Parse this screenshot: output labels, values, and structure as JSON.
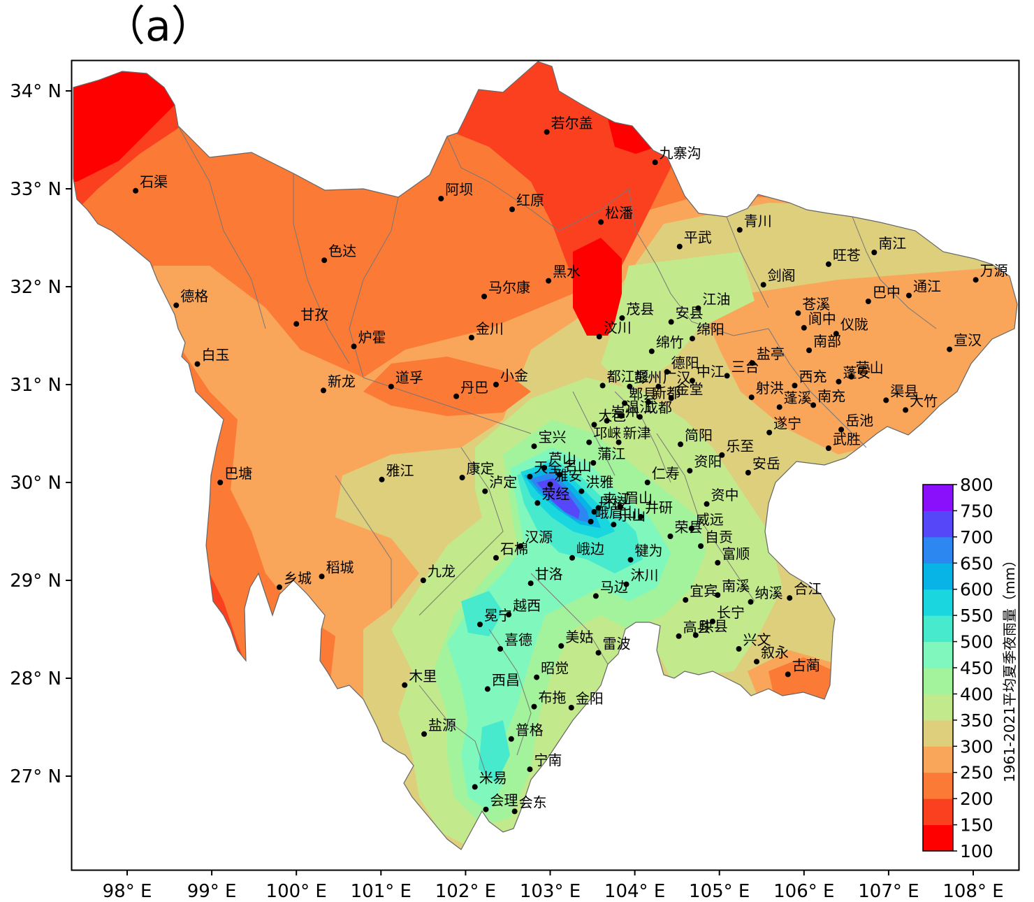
{
  "panel_label": "（a）",
  "lon_ticks": [
    "98° E",
    "99° E",
    "100° E",
    "101° E",
    "102° E",
    "103° E",
    "104° E",
    "105° E",
    "106° E",
    "107° E",
    "108° E"
  ],
  "lat_ticks": [
    "34° N",
    "33° N",
    "32° N",
    "31° N",
    "30° N",
    "29° N",
    "28° N",
    "27° N"
  ],
  "colorbar": {
    "title": "1961-2021平均夏季夜雨量（mm）",
    "levels": [
      "100",
      "150",
      "200",
      "250",
      "300",
      "350",
      "400",
      "450",
      "500",
      "550",
      "600",
      "650",
      "700",
      "750",
      "800"
    ],
    "colors": [
      "#ff0000",
      "#fb4020",
      "#fa7a36",
      "#f9a55a",
      "#ddcf7c",
      "#c2ea8d",
      "#a2f39c",
      "#7ff7bd",
      "#48eace",
      "#1ad6df",
      "#08b3e6",
      "#2c87f0",
      "#5648f8",
      "#8a10fb"
    ]
  },
  "cities": [
    {
      "name": "若尔盖",
      "lon": 102.96,
      "lat": 33.58
    },
    {
      "name": "九寨沟",
      "lon": 104.24,
      "lat": 33.27
    },
    {
      "name": "石渠",
      "lon": 98.1,
      "lat": 32.98
    },
    {
      "name": "阿坝",
      "lon": 101.71,
      "lat": 32.9
    },
    {
      "name": "红原",
      "lon": 102.55,
      "lat": 32.79
    },
    {
      "name": "松潘",
      "lon": 103.6,
      "lat": 32.66
    },
    {
      "name": "青川",
      "lon": 105.24,
      "lat": 32.58
    },
    {
      "name": "平武",
      "lon": 104.53,
      "lat": 32.41
    },
    {
      "name": "南江",
      "lon": 106.83,
      "lat": 32.35
    },
    {
      "name": "色达",
      "lon": 100.33,
      "lat": 32.27
    },
    {
      "name": "旺苍",
      "lon": 106.29,
      "lat": 32.23
    },
    {
      "name": "黑水",
      "lon": 102.98,
      "lat": 32.06
    },
    {
      "name": "万源",
      "lon": 108.03,
      "lat": 32.07
    },
    {
      "name": "剑阁",
      "lon": 105.52,
      "lat": 32.02
    },
    {
      "name": "马尔康",
      "lon": 102.22,
      "lat": 31.9
    },
    {
      "name": "通江",
      "lon": 107.24,
      "lat": 31.91
    },
    {
      "name": "巴中",
      "lon": 106.76,
      "lat": 31.85
    },
    {
      "name": "德格",
      "lon": 98.58,
      "lat": 31.81
    },
    {
      "name": "江油",
      "lon": 104.75,
      "lat": 31.78
    },
    {
      "name": "茂县",
      "lon": 103.85,
      "lat": 31.68
    },
    {
      "name": "苍溪",
      "lon": 105.93,
      "lat": 31.73
    },
    {
      "name": "安县",
      "lon": 104.43,
      "lat": 31.64
    },
    {
      "name": "甘孜",
      "lon": 100.0,
      "lat": 31.62
    },
    {
      "name": "阆中",
      "lon": 106.0,
      "lat": 31.58
    },
    {
      "name": "汶川",
      "lon": 103.58,
      "lat": 31.49
    },
    {
      "name": "仪陇",
      "lon": 106.38,
      "lat": 31.52
    },
    {
      "name": "金川",
      "lon": 102.07,
      "lat": 31.48
    },
    {
      "name": "绵阳",
      "lon": 104.68,
      "lat": 31.47
    },
    {
      "name": "炉霍",
      "lon": 100.68,
      "lat": 31.39
    },
    {
      "name": "南部",
      "lon": 106.06,
      "lat": 31.35
    },
    {
      "name": "宣汉",
      "lon": 107.72,
      "lat": 31.36
    },
    {
      "name": "绵竹",
      "lon": 104.2,
      "lat": 31.34
    },
    {
      "name": "盐亭",
      "lon": 105.39,
      "lat": 31.22
    },
    {
      "name": "白玉",
      "lon": 98.83,
      "lat": 31.21
    },
    {
      "name": "德阳",
      "lon": 104.38,
      "lat": 31.13
    },
    {
      "name": "中江",
      "lon": 104.68,
      "lat": 31.04
    },
    {
      "name": "三台",
      "lon": 105.09,
      "lat": 31.09
    },
    {
      "name": "蓬安",
      "lon": 106.41,
      "lat": 31.03
    },
    {
      "name": "营山",
      "lon": 106.56,
      "lat": 31.08
    },
    {
      "name": "都江堰",
      "lon": 103.62,
      "lat": 30.99
    },
    {
      "name": "彭州",
      "lon": 103.94,
      "lat": 30.98
    },
    {
      "name": "广汉",
      "lon": 104.28,
      "lat": 30.98
    },
    {
      "name": "小金",
      "lon": 102.36,
      "lat": 31.0
    },
    {
      "name": "西充",
      "lon": 105.89,
      "lat": 30.99
    },
    {
      "name": "新龙",
      "lon": 100.32,
      "lat": 30.94
    },
    {
      "name": "道孚",
      "lon": 101.12,
      "lat": 30.98
    },
    {
      "name": "郫县",
      "lon": 103.88,
      "lat": 30.81
    },
    {
      "name": "新都",
      "lon": 104.16,
      "lat": 30.82
    },
    {
      "name": "金堂",
      "lon": 104.43,
      "lat": 30.86
    },
    {
      "name": "射洪",
      "lon": 105.38,
      "lat": 30.87
    },
    {
      "name": "丹巴",
      "lon": 101.89,
      "lat": 30.88
    },
    {
      "name": "温江",
      "lon": 103.84,
      "lat": 30.68
    },
    {
      "name": "成都",
      "lon": 104.06,
      "lat": 30.67
    },
    {
      "name": "南充",
      "lon": 106.11,
      "lat": 30.79
    },
    {
      "name": "蓬溪",
      "lon": 105.71,
      "lat": 30.77
    },
    {
      "name": "大邑",
      "lon": 103.52,
      "lat": 30.59
    },
    {
      "name": "崇州",
      "lon": 103.67,
      "lat": 30.63
    },
    {
      "name": "渠县",
      "lon": 106.97,
      "lat": 30.84
    },
    {
      "name": "大竹",
      "lon": 107.2,
      "lat": 30.74
    },
    {
      "name": "邛崃",
      "lon": 103.46,
      "lat": 30.41
    },
    {
      "name": "新津",
      "lon": 103.81,
      "lat": 30.41
    },
    {
      "name": "遂宁",
      "lon": 105.59,
      "lat": 30.51
    },
    {
      "name": "岳池",
      "lon": 106.44,
      "lat": 30.54
    },
    {
      "name": "宝兴",
      "lon": 102.81,
      "lat": 30.37
    },
    {
      "name": "简阳",
      "lon": 104.54,
      "lat": 30.39
    },
    {
      "name": "武胜",
      "lon": 106.29,
      "lat": 30.35
    },
    {
      "name": "乐至",
      "lon": 105.03,
      "lat": 30.28
    },
    {
      "name": "蒲江",
      "lon": 103.51,
      "lat": 30.2
    },
    {
      "name": "芦山",
      "lon": 102.93,
      "lat": 30.15
    },
    {
      "name": "天全",
      "lon": 102.76,
      "lat": 30.06
    },
    {
      "name": "名山",
      "lon": 103.11,
      "lat": 30.08
    },
    {
      "name": "安岳",
      "lon": 105.34,
      "lat": 30.1
    },
    {
      "name": "雅江",
      "lon": 101.01,
      "lat": 30.03
    },
    {
      "name": "康定",
      "lon": 101.96,
      "lat": 30.05
    },
    {
      "name": "雅安",
      "lon": 103.0,
      "lat": 29.98
    },
    {
      "name": "仁寿",
      "lon": 104.15,
      "lat": 30.0
    },
    {
      "name": "资阳",
      "lon": 104.65,
      "lat": 30.12
    },
    {
      "name": "洪雅",
      "lon": 103.37,
      "lat": 29.91
    },
    {
      "name": "巴塘",
      "lon": 99.1,
      "lat": 30.0
    },
    {
      "name": "泸定",
      "lon": 102.23,
      "lat": 29.91
    },
    {
      "name": "荥经",
      "lon": 102.85,
      "lat": 29.79
    },
    {
      "name": "资中",
      "lon": 104.85,
      "lat": 29.78
    },
    {
      "name": "丹棱",
      "lon": 103.52,
      "lat": 29.7
    },
    {
      "name": "夹江",
      "lon": 103.57,
      "lat": 29.74
    },
    {
      "name": "眉山",
      "lon": 103.83,
      "lat": 29.75
    },
    {
      "name": "井研",
      "lon": 104.07,
      "lat": 29.65
    },
    {
      "name": "峨眉山",
      "lon": 103.48,
      "lat": 29.6
    },
    {
      "name": "乐山",
      "lon": 103.75,
      "lat": 29.57
    },
    {
      "name": "威远",
      "lon": 104.67,
      "lat": 29.53
    },
    {
      "name": "荣县",
      "lon": 104.42,
      "lat": 29.45
    },
    {
      "name": "汉源",
      "lon": 102.65,
      "lat": 29.35
    },
    {
      "name": "自贡",
      "lon": 104.78,
      "lat": 29.35
    },
    {
      "name": "石棉",
      "lon": 102.36,
      "lat": 29.23
    },
    {
      "name": "峨边",
      "lon": 103.26,
      "lat": 29.23
    },
    {
      "name": "犍为",
      "lon": 103.95,
      "lat": 29.21
    },
    {
      "name": "富顺",
      "lon": 104.98,
      "lat": 29.18
    },
    {
      "name": "稻城",
      "lon": 100.3,
      "lat": 29.04
    },
    {
      "name": "九龙",
      "lon": 101.5,
      "lat": 29.0
    },
    {
      "name": "沐川",
      "lon": 103.9,
      "lat": 28.96
    },
    {
      "name": "甘洛",
      "lon": 102.77,
      "lat": 28.97
    },
    {
      "name": "乡城",
      "lon": 99.8,
      "lat": 28.93
    },
    {
      "name": "马边",
      "lon": 103.54,
      "lat": 28.84
    },
    {
      "name": "宜宾",
      "lon": 104.6,
      "lat": 28.8
    },
    {
      "name": "南溪",
      "lon": 104.98,
      "lat": 28.85
    },
    {
      "name": "纳溪",
      "lon": 105.37,
      "lat": 28.78
    },
    {
      "name": "合江",
      "lon": 105.83,
      "lat": 28.82
    },
    {
      "name": "冕宁",
      "lon": 102.17,
      "lat": 28.55
    },
    {
      "name": "越西",
      "lon": 102.51,
      "lat": 28.65
    },
    {
      "name": "长宁",
      "lon": 104.92,
      "lat": 28.58
    },
    {
      "name": "高县",
      "lon": 104.52,
      "lat": 28.43
    },
    {
      "name": "珙县",
      "lon": 104.72,
      "lat": 28.44
    },
    {
      "name": "兴文",
      "lon": 105.23,
      "lat": 28.3
    },
    {
      "name": "喜德",
      "lon": 102.41,
      "lat": 28.3
    },
    {
      "name": "美姑",
      "lon": 103.13,
      "lat": 28.33
    },
    {
      "name": "雷波",
      "lon": 103.57,
      "lat": 28.26
    },
    {
      "name": "叙永",
      "lon": 105.44,
      "lat": 28.17
    },
    {
      "name": "古蔺",
      "lon": 105.81,
      "lat": 28.04
    },
    {
      "name": "木里",
      "lon": 101.28,
      "lat": 27.93
    },
    {
      "name": "昭觉",
      "lon": 102.84,
      "lat": 28.01
    },
    {
      "name": "西昌",
      "lon": 102.26,
      "lat": 27.89
    },
    {
      "name": "布拖",
      "lon": 102.81,
      "lat": 27.71
    },
    {
      "name": "金阳",
      "lon": 103.25,
      "lat": 27.7
    },
    {
      "name": "盐源",
      "lon": 101.51,
      "lat": 27.43
    },
    {
      "name": "普格",
      "lon": 102.54,
      "lat": 27.38
    },
    {
      "name": "宁南",
      "lon": 102.76,
      "lat": 27.07
    },
    {
      "name": "米易",
      "lon": 102.11,
      "lat": 26.89
    },
    {
      "name": "会理",
      "lon": 102.24,
      "lat": 26.66
    },
    {
      "name": "会东",
      "lon": 102.58,
      "lat": 26.64
    }
  ]
}
